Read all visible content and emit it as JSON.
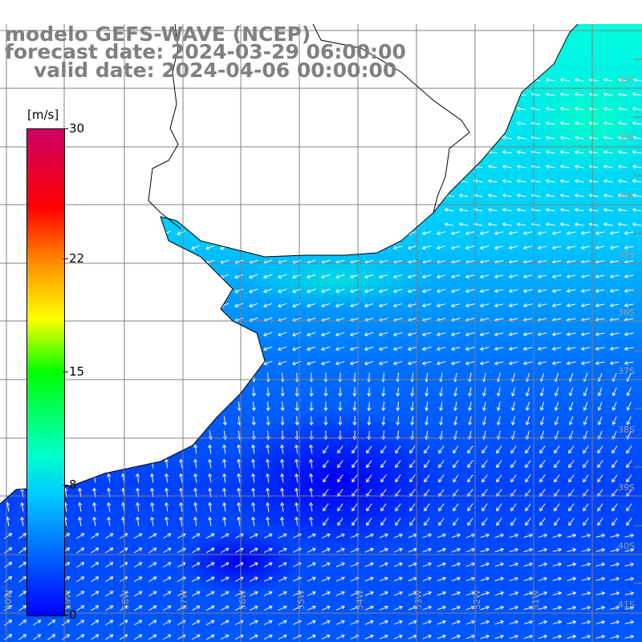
{
  "title": {
    "line1": "modelo GEFS-WAVE (NCEP)",
    "line2": "forecast date: 2024-03-29 06:00:00",
    "line3": "valid date: 2024-04-06 00:00:00"
  },
  "colorbar": {
    "units": "[m/s]",
    "ticks": [
      "30",
      "22",
      "15",
      "8",
      "0"
    ],
    "tick_values": [
      30,
      22,
      15,
      8,
      0
    ],
    "colors": [
      "#0000ff",
      "#00ccff",
      "#00ffcc",
      "#00ff00",
      "#ffff00",
      "#ff8800",
      "#ff0000",
      "#cc0066"
    ]
  },
  "map": {
    "lat_labels": [
      "32S",
      "33S",
      "34S",
      "35S",
      "36S",
      "37S",
      "38S",
      "39S",
      "40S",
      "41S"
    ],
    "lon_labels": [
      "60W",
      "59W",
      "58W",
      "57W",
      "56W",
      "55W",
      "54W",
      "53W",
      "52W",
      "51W"
    ],
    "land_color": "#ffffff",
    "grid_color": "#808080",
    "arrow_color": "#ffffff"
  }
}
